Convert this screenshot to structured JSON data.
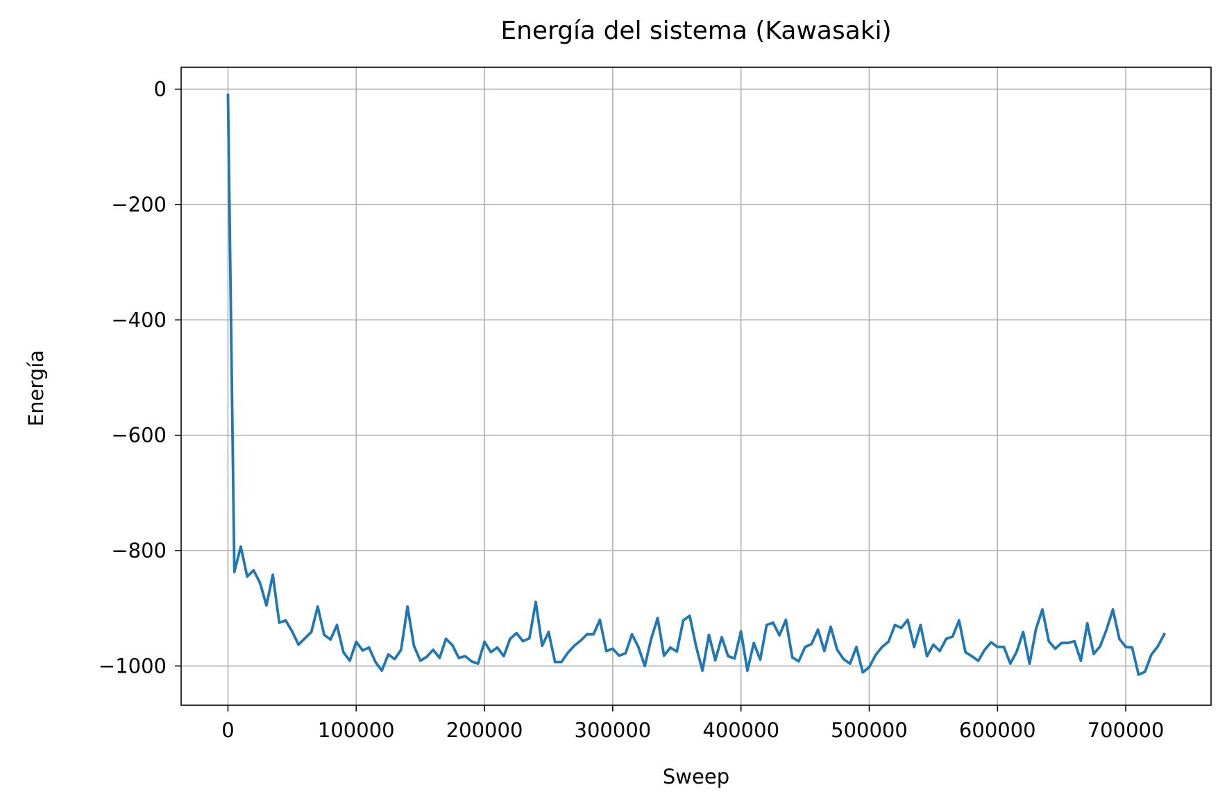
{
  "chart_data": {
    "type": "line",
    "title": "Energía del sistema (Kawasaki)",
    "xlabel": "Sweep",
    "ylabel": "Energía",
    "xlim": [
      -36500,
      766500
    ],
    "ylim": [
      -1068,
      38
    ],
    "grid": true,
    "x_ticks": [
      0,
      100000,
      200000,
      300000,
      400000,
      500000,
      600000,
      700000
    ],
    "x_tick_labels": [
      "0",
      "100000",
      "200000",
      "300000",
      "400000",
      "500000",
      "600000",
      "700000"
    ],
    "y_ticks": [
      0,
      -200,
      -400,
      -600,
      -800,
      -1000
    ],
    "y_tick_labels": [
      "0",
      "−200",
      "−400",
      "−600",
      "−800",
      "−1000"
    ],
    "series": [
      {
        "color": "#1f77b4",
        "x": [
          0,
          5000,
          10000,
          15000,
          20000,
          25000,
          30000,
          35000,
          40000,
          45000,
          50000,
          55000,
          60000,
          65000,
          70000,
          75000,
          80000,
          85000,
          90000,
          95000,
          100000,
          105000,
          110000,
          115000,
          120000,
          125000,
          130000,
          135000,
          140000,
          145000,
          150000,
          155000,
          160000,
          165000,
          170000,
          175000,
          180000,
          185000,
          190000,
          195000,
          200000,
          205000,
          210000,
          215000,
          220000,
          225000,
          230000,
          235000,
          240000,
          245000,
          250000,
          255000,
          260000,
          265000,
          270000,
          275000,
          280000,
          285000,
          290000,
          295000,
          300000,
          305000,
          310000,
          315000,
          320000,
          325000,
          330000,
          335000,
          340000,
          345000,
          350000,
          355000,
          360000,
          365000,
          370000,
          375000,
          380000,
          385000,
          390000,
          395000,
          400000,
          405000,
          410000,
          415000,
          420000,
          425000,
          430000,
          435000,
          440000,
          445000,
          450000,
          455000,
          460000,
          465000,
          470000,
          475000,
          480000,
          485000,
          490000,
          495000,
          500000,
          505000,
          510000,
          515000,
          520000,
          525000,
          530000,
          535000,
          540000,
          545000,
          550000,
          555000,
          560000,
          565000,
          570000,
          575000,
          580000,
          585000,
          590000,
          595000,
          600000,
          605000,
          610000,
          615000,
          620000,
          625000,
          630000,
          635000,
          640000,
          645000,
          650000,
          655000,
          660000,
          665000,
          670000,
          675000,
          680000,
          685000,
          690000,
          695000,
          700000,
          705000,
          710000,
          715000,
          720000,
          725000,
          730000
        ],
        "y": [
          -10,
          -837,
          -793,
          -845,
          -834,
          -856,
          -895,
          -842,
          -925,
          -921,
          -940,
          -963,
          -952,
          -941,
          -897,
          -946,
          -954,
          -929,
          -976,
          -991,
          -958,
          -973,
          -968,
          -993,
          -1008,
          -980,
          -988,
          -972,
          -897,
          -965,
          -991,
          -984,
          -972,
          -986,
          -953,
          -964,
          -986,
          -983,
          -992,
          -996,
          -958,
          -976,
          -968,
          -983,
          -953,
          -943,
          -957,
          -952,
          -889,
          -965,
          -941,
          -993,
          -993,
          -977,
          -965,
          -956,
          -945,
          -945,
          -920,
          -974,
          -970,
          -982,
          -978,
          -945,
          -967,
          -1000,
          -953,
          -917,
          -982,
          -968,
          -975,
          -921,
          -913,
          -966,
          -1008,
          -946,
          -990,
          -950,
          -983,
          -987,
          -940,
          -1008,
          -960,
          -989,
          -929,
          -925,
          -947,
          -920,
          -985,
          -992,
          -967,
          -962,
          -937,
          -974,
          -932,
          -972,
          -988,
          -996,
          -967,
          -1011,
          -1002,
          -981,
          -967,
          -958,
          -929,
          -934,
          -920,
          -967,
          -929,
          -983,
          -963,
          -974,
          -953,
          -949,
          -921,
          -976,
          -983,
          -991,
          -972,
          -959,
          -967,
          -967,
          -996,
          -975,
          -941,
          -996,
          -936,
          -902,
          -957,
          -970,
          -960,
          -960,
          -957,
          -991,
          -926,
          -979,
          -966,
          -937,
          -902,
          -953,
          -967,
          -968,
          -1015,
          -1010,
          -980,
          -966,
          -945
        ]
      }
    ]
  }
}
